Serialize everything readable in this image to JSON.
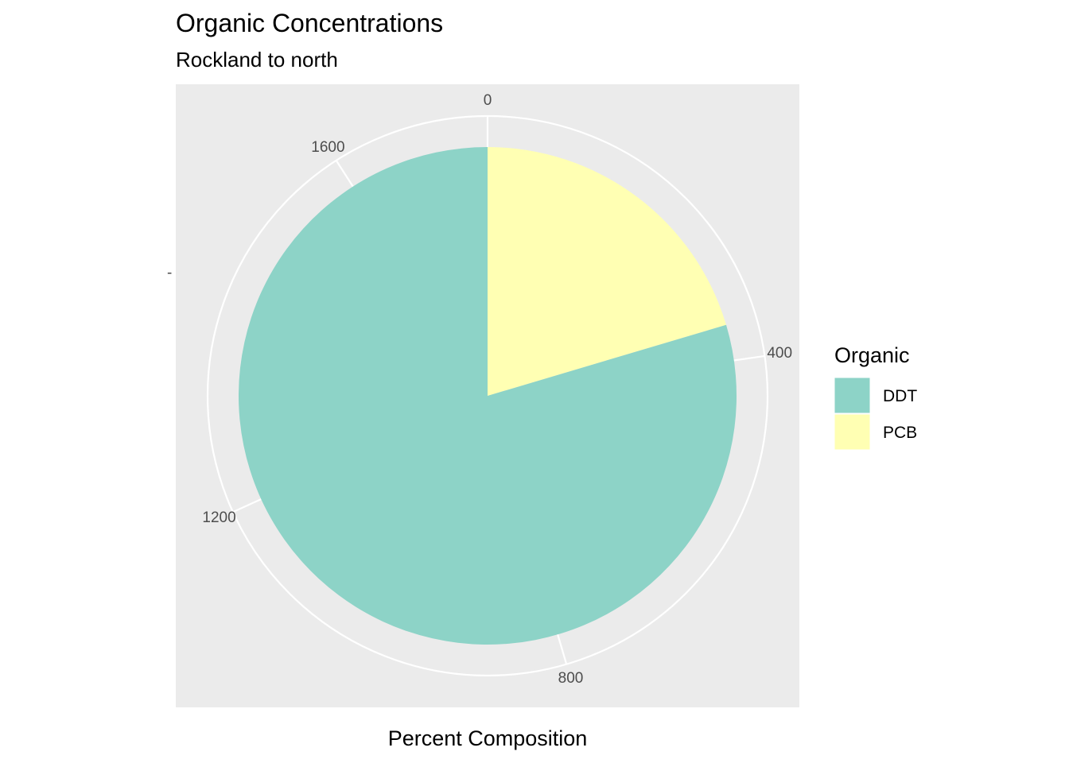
{
  "chart_data": {
    "type": "pie",
    "title": "Organic Concentrations",
    "subtitle": "Rockland to north",
    "xlabel": "Percent Composition",
    "ylabel_tick": "-",
    "theta_range": [
      0,
      1760
    ],
    "theta_ticks": [
      {
        "value": 0,
        "label": "0"
      },
      {
        "value": 400,
        "label": "400"
      },
      {
        "value": 800,
        "label": "800"
      },
      {
        "value": 1200,
        "label": "1200"
      },
      {
        "value": 1600,
        "label": "1600"
      }
    ],
    "series": [
      {
        "name": "PCB",
        "value": 359,
        "color": "#FFFFB3"
      },
      {
        "name": "DDT",
        "value": 1401,
        "color": "#8DD3C7"
      }
    ],
    "legend": {
      "title": "Organic",
      "placement": "right",
      "entries": [
        {
          "label": "DDT",
          "color": "#8DD3C7"
        },
        {
          "label": "PCB",
          "color": "#FFFFB3"
        }
      ]
    },
    "panel_color": "#EBEBEB",
    "grid": true
  }
}
